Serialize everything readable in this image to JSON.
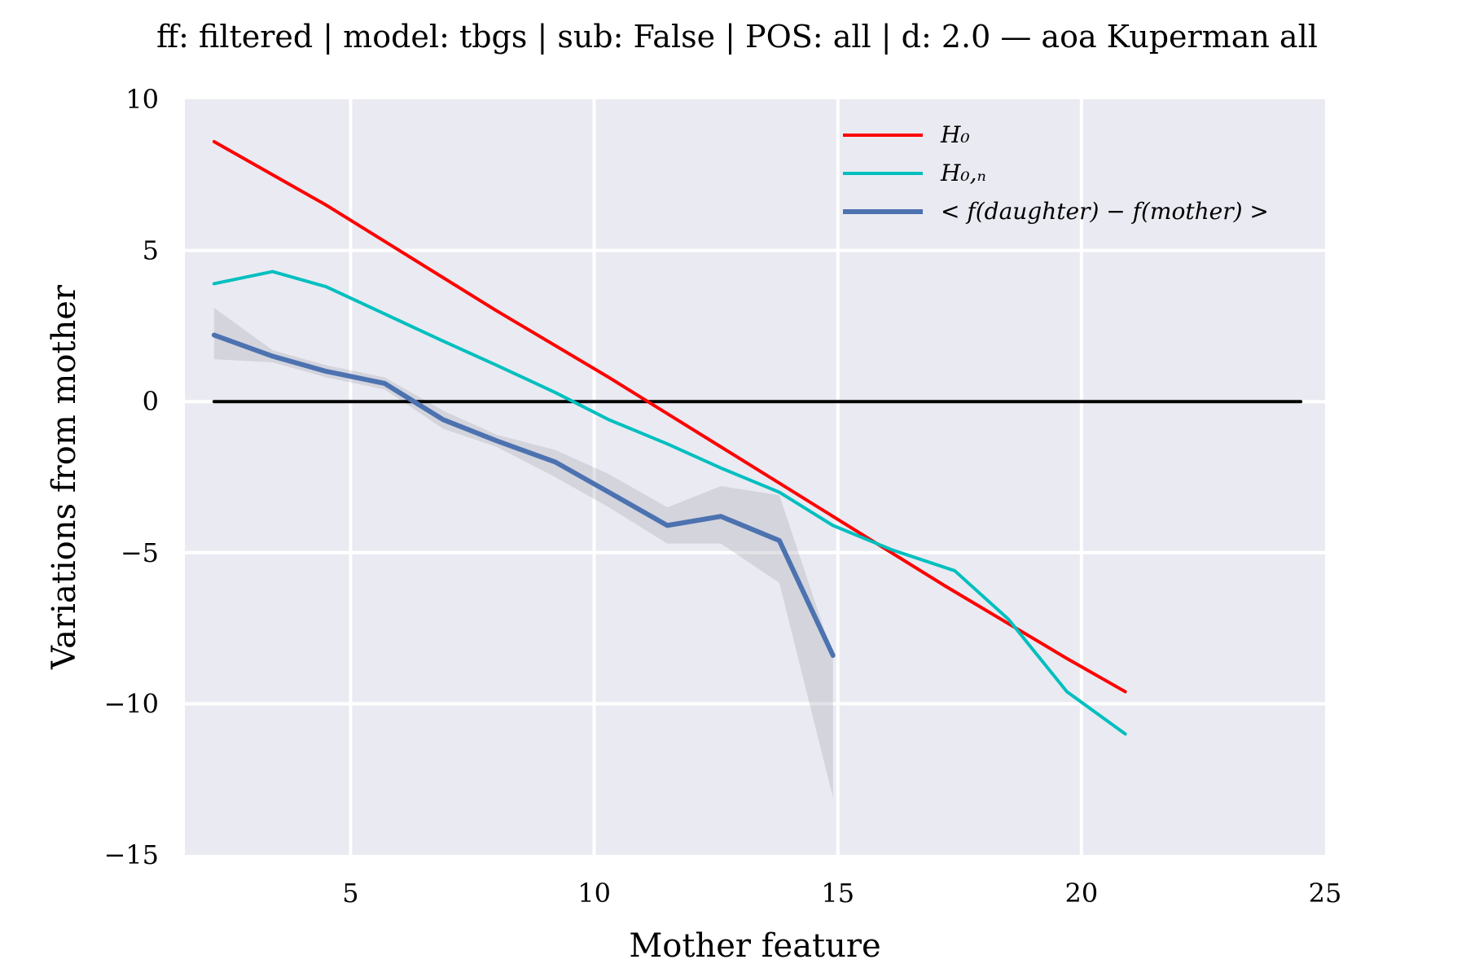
{
  "chart_data": {
    "type": "line",
    "title": "ff: filtered | model: tbgs | sub: False | POS: all | d: 2.0 — aoa Kuperman all",
    "xlabel": "Mother feature",
    "ylabel": "Variations from mother",
    "xlim": [
      1.6,
      25
    ],
    "ylim": [
      -15,
      10
    ],
    "xticks": [
      5,
      10,
      15,
      20,
      25
    ],
    "yticks": [
      10,
      5,
      0,
      -5,
      -10,
      -15
    ],
    "xtick_labels": [
      "5",
      "10",
      "15",
      "20",
      "25"
    ],
    "ytick_labels": [
      "10",
      "5",
      "0",
      "−5",
      "−10",
      "−15"
    ],
    "grid": true,
    "legend_position": "upper-right",
    "background_color": "#EAEAF2",
    "series": [
      {
        "name": "H_0",
        "legend_label": "H₀",
        "color": "#FF0000",
        "x": [
          2.2,
          4.5,
          5.7,
          8.0,
          10.3,
          12.6,
          14.9,
          17.2,
          19.7,
          20.9
        ],
        "y": [
          8.6,
          6.5,
          5.3,
          3.0,
          0.8,
          -1.5,
          -3.8,
          -6.1,
          -8.5,
          -9.6
        ]
      },
      {
        "name": "H_0,n",
        "legend_label": "H₀,ₙ",
        "color": "#00BFBF",
        "x": [
          2.2,
          3.4,
          4.5,
          5.7,
          6.9,
          8.0,
          9.2,
          10.3,
          11.5,
          12.6,
          13.8,
          14.9,
          16.1,
          17.4,
          18.5,
          19.7,
          20.9
        ],
        "y": [
          3.9,
          4.3,
          3.8,
          2.9,
          2.0,
          1.2,
          0.3,
          -0.6,
          -1.4,
          -2.2,
          -3.0,
          -4.1,
          -4.9,
          -5.6,
          -7.2,
          -9.6,
          -11.0
        ]
      },
      {
        "name": "< f(daughter) − f(mother) >",
        "legend_label": "< f(daughter) − f(mother) >",
        "color": "#4C72B0",
        "x": [
          2.2,
          3.4,
          4.5,
          5.7,
          6.9,
          8.0,
          9.2,
          10.3,
          11.5,
          12.6,
          13.8,
          14.9
        ],
        "y": [
          2.2,
          1.5,
          1.0,
          0.6,
          -0.6,
          -1.3,
          -2.0,
          -3.0,
          -4.1,
          -3.8,
          -4.6,
          -8.4
        ],
        "ci_lower": [
          1.4,
          1.3,
          0.8,
          0.4,
          -0.9,
          -1.5,
          -2.5,
          -3.5,
          -4.7,
          -4.7,
          -6.0,
          -13.1
        ],
        "ci_upper": [
          3.1,
          1.7,
          1.2,
          0.8,
          -0.3,
          -1.1,
          -1.6,
          -2.4,
          -3.5,
          -2.8,
          -3.1,
          -8.4
        ]
      },
      {
        "name": "zero",
        "color": "#000000",
        "x": [
          2.2,
          24.5
        ],
        "y": [
          0,
          0
        ]
      }
    ]
  }
}
